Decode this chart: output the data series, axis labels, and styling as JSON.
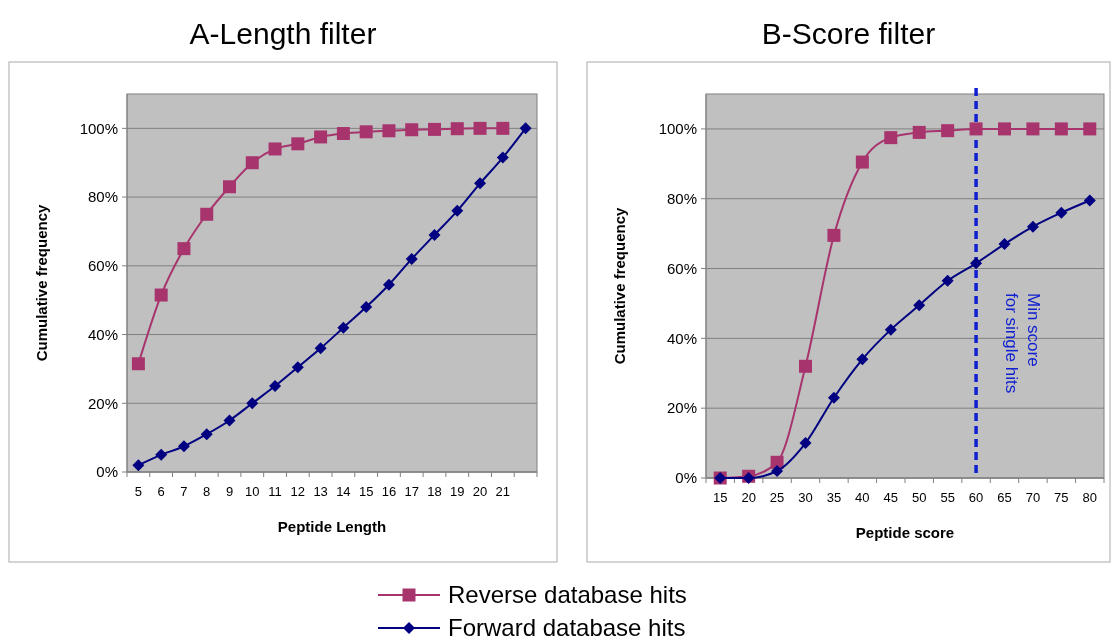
{
  "chart_data": [
    {
      "type": "line",
      "title": "A-Length filter",
      "xlabel": "Peptide Length",
      "ylabel": "Cumulative frequency",
      "categories": [
        "5",
        "6",
        "7",
        "8",
        "9",
        "10",
        "11",
        "12",
        "13",
        "14",
        "15",
        "16",
        "17",
        "18",
        "19",
        "20",
        "21",
        null
      ],
      "series": [
        {
          "name": "Reverse database hits",
          "color": "#a8346e",
          "marker": "square",
          "values": [
            31.5,
            51.5,
            65,
            75,
            83,
            90,
            94,
            95.5,
            97.5,
            98.5,
            99,
            99.3,
            99.6,
            99.7,
            99.9,
            100,
            100,
            null
          ]
        },
        {
          "name": "Forward database hits",
          "color": "#000080",
          "marker": "diamond",
          "values": [
            2,
            5,
            7.5,
            11,
            15,
            20,
            25,
            30.5,
            36,
            42,
            48,
            54.5,
            62,
            69,
            76,
            84,
            91.5,
            100
          ]
        }
      ],
      "ylim": [
        0,
        110
      ],
      "yticks": [
        {
          "value": 0,
          "label": "0%"
        },
        {
          "value": 20,
          "label": "20%"
        },
        {
          "value": 40,
          "label": "40%"
        },
        {
          "value": 60,
          "label": "60%"
        },
        {
          "value": 80,
          "label": "80%"
        },
        {
          "value": 100,
          "label": "100%"
        }
      ],
      "grid": "y",
      "legend": "bottom"
    },
    {
      "type": "line",
      "title": "B-Score filter",
      "xlabel": "Peptide score",
      "ylabel": "Cumulative frequency",
      "categories": [
        "15",
        "20",
        "25",
        "30",
        "35",
        "40",
        "45",
        "50",
        "55",
        "60",
        "65",
        "70",
        "75",
        "80"
      ],
      "series": [
        {
          "color": "#a8346e",
          "marker": "square",
          "values": [
            0,
            0.5,
            4.5,
            32,
            69.5,
            90.5,
            97.5,
            99,
            99.5,
            100,
            100,
            100,
            100,
            100
          ]
        },
        {
          "color": "#000080",
          "marker": "diamond",
          "values": [
            0,
            0,
            2,
            10,
            23,
            34,
            42.5,
            49.5,
            56.5,
            61.5,
            67,
            72,
            76,
            79.5
          ]
        }
      ],
      "ylim": [
        0,
        110
      ],
      "yticks": [
        {
          "value": 0,
          "label": "0%"
        },
        {
          "value": 20,
          "label": "20%"
        },
        {
          "value": 40,
          "label": "40%"
        },
        {
          "value": 60,
          "label": "60%"
        },
        {
          "value": 80,
          "label": "80%"
        },
        {
          "value": 100,
          "label": "100%"
        }
      ],
      "ref_lines": [
        {
          "axis": "x",
          "value": "60",
          "label": "Min score for single hits",
          "color": "#1020d0",
          "line_style": "dashed"
        }
      ],
      "grid": "y"
    }
  ]
}
